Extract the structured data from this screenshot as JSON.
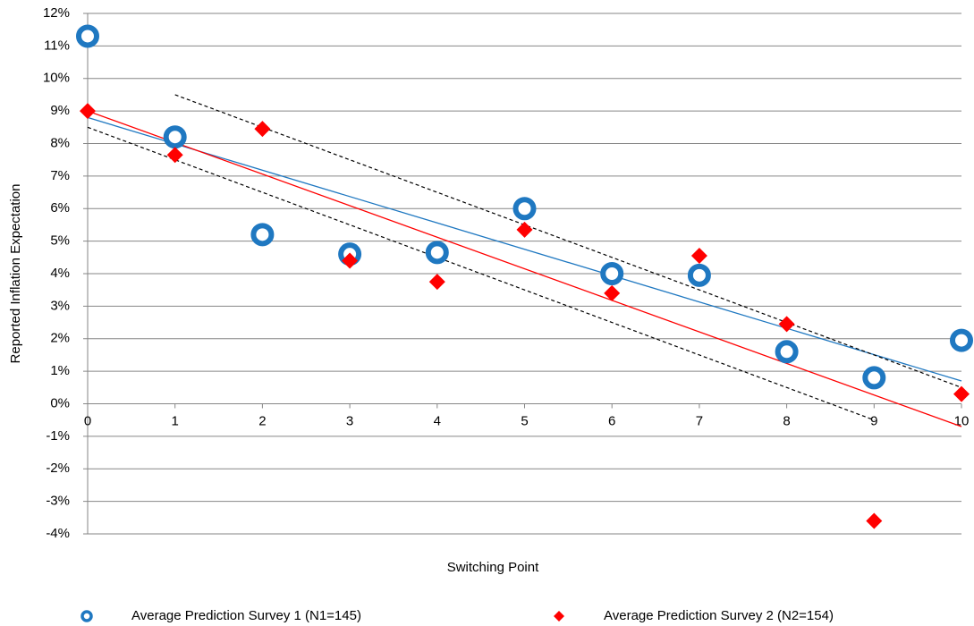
{
  "chart_data": {
    "type": "scatter",
    "x_label": "Switching Point",
    "y_label": "Reported Inflation Expectation",
    "x": [
      0,
      1,
      2,
      3,
      4,
      5,
      6,
      7,
      8,
      9,
      10
    ],
    "series": [
      {
        "name": "Average Prediction Survey 1 (N1=145)",
        "color": "#1f78c1",
        "marker": "circle",
        "values": [
          11.3,
          8.2,
          5.2,
          4.6,
          4.65,
          6.0,
          4.0,
          3.95,
          1.6,
          0.8,
          1.95
        ]
      },
      {
        "name": "Average Prediction Survey 2 (N2=154)",
        "color": "#ff0000",
        "marker": "diamond",
        "values": [
          9.0,
          7.65,
          8.45,
          4.4,
          3.75,
          5.35,
          3.4,
          4.55,
          2.45,
          -3.6,
          0.3
        ]
      }
    ],
    "trend_lines": [
      {
        "color": "#1f78c1",
        "dashed": false,
        "x": [
          0,
          10
        ],
        "y": [
          8.8,
          0.7
        ]
      },
      {
        "color": "#ff0000",
        "dashed": false,
        "x": [
          0,
          10
        ],
        "y": [
          9.0,
          -0.7
        ]
      },
      {
        "color": "#000000",
        "dashed": true,
        "x": [
          1,
          10
        ],
        "y": [
          9.5,
          0.5
        ]
      },
      {
        "color": "#000000",
        "dashed": true,
        "x": [
          0,
          9
        ],
        "y": [
          8.5,
          -0.5
        ]
      }
    ],
    "xlim": [
      0,
      10
    ],
    "xticks": [
      0,
      1,
      2,
      3,
      4,
      5,
      6,
      7,
      8,
      9,
      10
    ],
    "ylim": [
      -4,
      12
    ],
    "yticks": [
      {
        "value": -4,
        "label": "-4%"
      },
      {
        "value": -3,
        "label": "-3%"
      },
      {
        "value": -2,
        "label": "-2%"
      },
      {
        "value": -1,
        "label": "-1%"
      },
      {
        "value": 0,
        "label": "0%"
      },
      {
        "value": 1,
        "label": "1%"
      },
      {
        "value": 2,
        "label": "2%"
      },
      {
        "value": 3,
        "label": "3%"
      },
      {
        "value": 4,
        "label": "4%"
      },
      {
        "value": 5,
        "label": "5%"
      },
      {
        "value": 6,
        "label": "6%"
      },
      {
        "value": 7,
        "label": "7%"
      },
      {
        "value": 8,
        "label": "8%"
      },
      {
        "value": 9,
        "label": "9%"
      },
      {
        "value": 10,
        "label": "10%"
      },
      {
        "value": 11,
        "label": "11%"
      },
      {
        "value": 12,
        "label": "12%"
      }
    ],
    "grid": true,
    "legend": "bottom"
  }
}
